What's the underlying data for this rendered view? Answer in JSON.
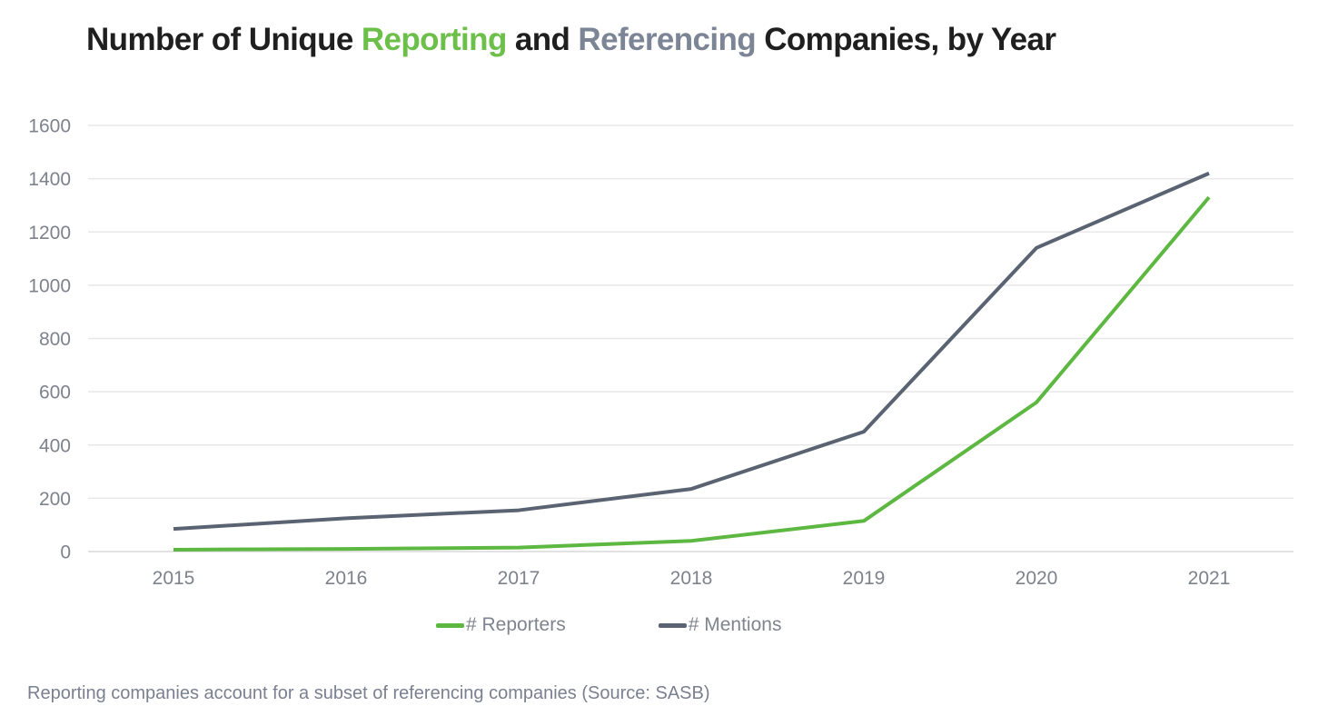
{
  "title": {
    "prefix": "Number of Unique ",
    "reporting": "Reporting",
    "middle": " and ",
    "referencing": "Referencing",
    "suffix": " Companies, by Year"
  },
  "colors": {
    "title_text": "#1f1f1f",
    "title_reporting_green": "#6cc04a",
    "title_referencing_gray": "#7c8595",
    "gridline": "#e8e8e8",
    "zero_axis_line": "#d9d9d9",
    "tick_label": "#7d828c",
    "legend_label": "#7f848e",
    "footnote": "#7a8090",
    "background": "#ffffff"
  },
  "chart_data": {
    "type": "line",
    "title": "Number of Unique Reporting and Referencing Companies, by Year",
    "categories": [
      "2015",
      "2016",
      "2017",
      "2018",
      "2019",
      "2020",
      "2021"
    ],
    "series": [
      {
        "name": "# Mentions",
        "color": "#5a6372",
        "values": [
          85,
          125,
          155,
          235,
          450,
          1140,
          1420
        ]
      },
      {
        "name": "# Reporters",
        "color": "#5cb840",
        "values": [
          7,
          10,
          15,
          40,
          115,
          560,
          1330
        ]
      }
    ],
    "xlabel": "",
    "ylabel": "",
    "ylim": [
      0,
      1600
    ],
    "yticks": [
      0,
      200,
      400,
      600,
      800,
      1000,
      1200,
      1400,
      1600
    ],
    "grid": true,
    "legend_position": "bottom"
  },
  "footer": {
    "note": "Reporting companies account for a subset of referencing companies (Source: SASB)"
  }
}
